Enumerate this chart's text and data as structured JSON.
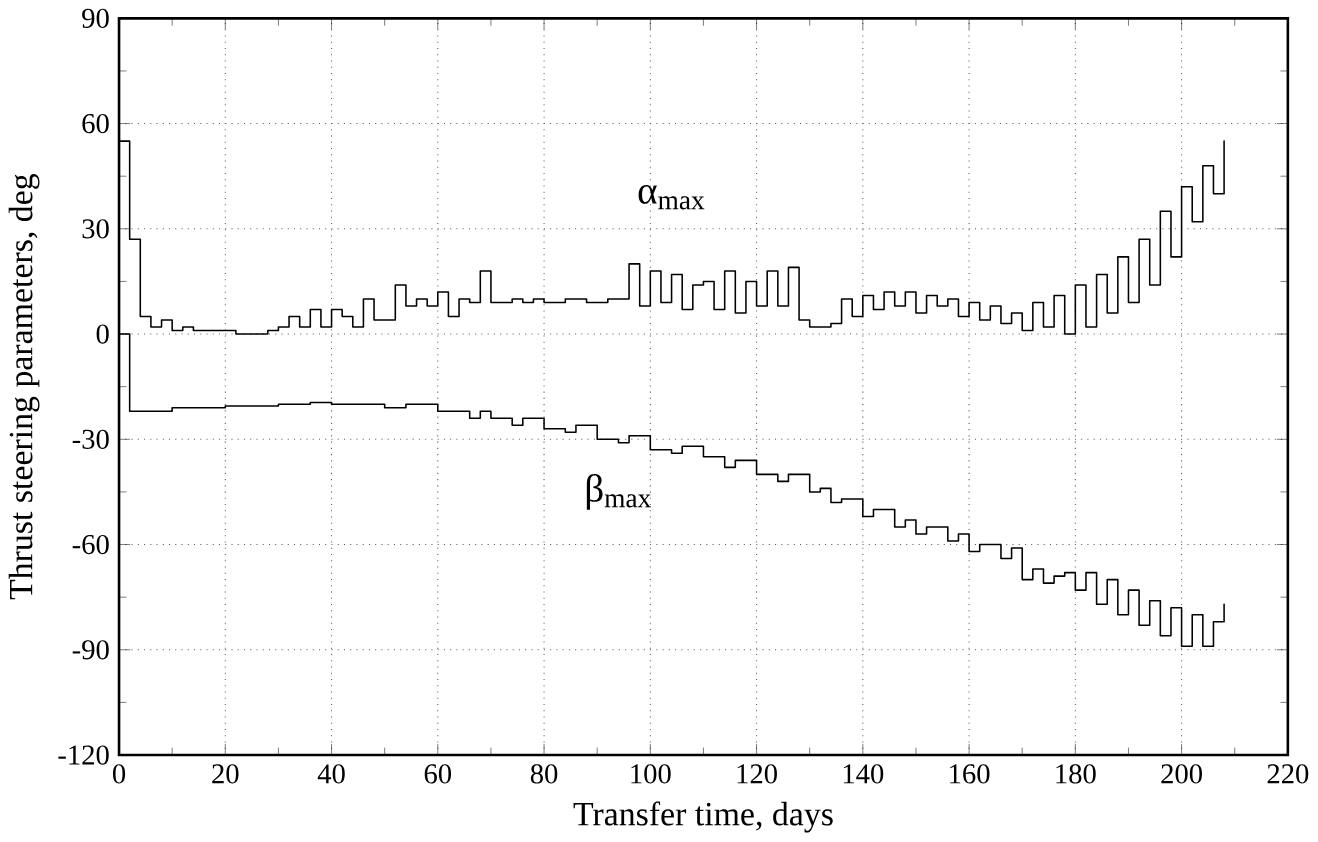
{
  "chart_data": {
    "type": "step",
    "xlabel": "Transfer time,  days",
    "ylabel": "Thrust steering parameters,  deg",
    "xlim": [
      0,
      220
    ],
    "xticks": [
      0,
      20,
      40,
      60,
      80,
      100,
      120,
      140,
      160,
      180,
      200,
      220
    ],
    "ylim": [
      -120,
      90
    ],
    "yticks": [
      -120,
      -90,
      -60,
      -30,
      0,
      30,
      60,
      90
    ],
    "grid": true,
    "legend": false,
    "marker": "none",
    "line_style": "solid",
    "series": [
      {
        "name": "α$_{max}$",
        "color": "#000000",
        "x": [
          0,
          2,
          4,
          6,
          8,
          10,
          12,
          14,
          18,
          22,
          26,
          28,
          30,
          32,
          34,
          36,
          38,
          40,
          42,
          44,
          46,
          48,
          50,
          52,
          54,
          56,
          58,
          60,
          62,
          64,
          66,
          68,
          70,
          72,
          74,
          76,
          78,
          80,
          84,
          88,
          92,
          96,
          98,
          100,
          102,
          104,
          106,
          108,
          110,
          112,
          114,
          116,
          118,
          120,
          122,
          124,
          126,
          128,
          130,
          134,
          136,
          138,
          140,
          142,
          144,
          146,
          148,
          150,
          152,
          154,
          156,
          158,
          160,
          162,
          164,
          166,
          168,
          170,
          172,
          174,
          176,
          178,
          180,
          182,
          184,
          186,
          188,
          190,
          192,
          194,
          196,
          198,
          200,
          202,
          204,
          206,
          208
        ],
        "values": [
          55,
          27,
          5,
          2,
          4,
          1,
          2,
          1,
          1,
          0,
          0,
          1,
          2,
          5,
          2,
          7,
          2,
          7,
          5,
          2,
          10,
          4,
          4,
          14,
          8,
          10,
          8,
          12,
          5,
          10,
          9,
          18,
          9,
          9,
          10,
          9,
          10,
          9,
          10,
          9,
          10,
          20,
          8,
          18,
          9,
          17,
          7,
          14,
          15,
          7,
          18,
          6,
          15,
          8,
          18,
          8,
          19,
          4,
          2,
          3,
          10,
          5,
          11,
          7,
          12,
          8,
          12,
          6,
          11,
          8,
          10,
          5,
          9,
          4,
          8,
          3,
          6,
          1,
          9,
          2,
          11,
          0,
          14,
          2,
          17,
          6,
          22,
          9,
          27,
          14,
          35,
          22,
          42,
          32,
          48,
          40,
          55
        ]
      },
      {
        "name": "β$_{max}$",
        "color": "#000000",
        "x": [
          0,
          2,
          10,
          20,
          30,
          36,
          40,
          50,
          54,
          60,
          66,
          68,
          70,
          74,
          76,
          80,
          84,
          86,
          90,
          94,
          96,
          100,
          104,
          106,
          110,
          114,
          116,
          120,
          124,
          126,
          130,
          132,
          134,
          136,
          140,
          142,
          146,
          148,
          150,
          152,
          156,
          158,
          160,
          162,
          166,
          168,
          170,
          172,
          174,
          176,
          178,
          180,
          182,
          184,
          186,
          188,
          190,
          192,
          194,
          196,
          198,
          200,
          202,
          204,
          206,
          208
        ],
        "values": [
          0,
          -22,
          -21,
          -20.5,
          -20,
          -19.5,
          -20,
          -21,
          -20,
          -22,
          -24,
          -22,
          -24,
          -26,
          -24,
          -27,
          -28,
          -26,
          -30,
          -31,
          -29,
          -33,
          -34,
          -32,
          -35,
          -38,
          -36,
          -40,
          -42,
          -40,
          -45,
          -44,
          -48,
          -47,
          -52,
          -50,
          -55,
          -53,
          -57,
          -55,
          -59,
          -57,
          -62,
          -60,
          -64,
          -61,
          -70,
          -67,
          -71,
          -69,
          -68,
          -73,
          -68,
          -77,
          -70,
          -80,
          -73,
          -83,
          -76,
          -86,
          -78,
          -89,
          -80,
          -89,
          -82,
          -77
        ]
      }
    ]
  }
}
